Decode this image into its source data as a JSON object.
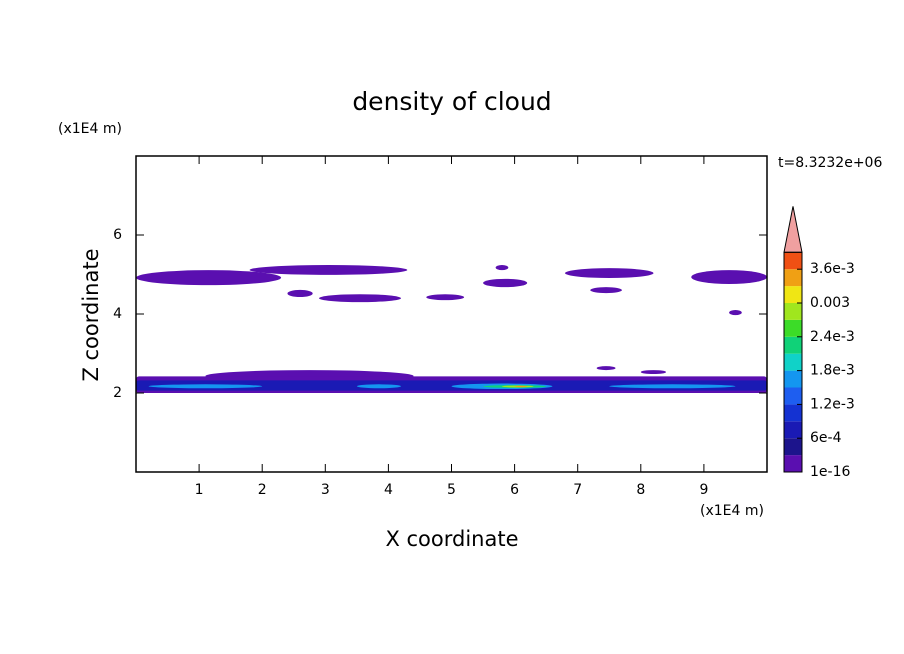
{
  "chart_data": {
    "type": "contour",
    "title": "density of cloud",
    "xlabel": "X coordinate",
    "ylabel": "Z coordinate",
    "x_unit": "(x1E4 m)",
    "y_unit": "(x1E4 m)",
    "time_label": "t=8.3232e+06",
    "xlim": [
      0,
      10
    ],
    "ylim": [
      0,
      8
    ],
    "xticks": [
      1,
      2,
      3,
      4,
      5,
      6,
      7,
      8,
      9
    ],
    "yticks": [
      2,
      4,
      6
    ],
    "colorbar": {
      "levels": [
        1e-16,
        0.0003,
        0.0006,
        0.0009,
        0.0012,
        0.0015,
        0.0018,
        0.0021,
        0.0024,
        0.0027,
        0.003,
        0.0033,
        0.0036,
        0.0039
      ],
      "colors": [
        "#5a0fb0",
        "#1c148c",
        "#1a1ab4",
        "#1432d2",
        "#1e5ef0",
        "#1496f0",
        "#10d2c8",
        "#10d278",
        "#3cdc28",
        "#a0e61e",
        "#f0e614",
        "#f0a014",
        "#f05014"
      ],
      "extend_color": "#f0a0a0",
      "ticks": [
        {
          "value": 1e-16,
          "label": "1e-16"
        },
        {
          "value": 0.0006,
          "label": "6e-4"
        },
        {
          "value": 0.0012,
          "label": "1.2e-3"
        },
        {
          "value": 0.0018,
          "label": "1.8e-3"
        },
        {
          "value": 0.0024,
          "label": "2.4e-3"
        },
        {
          "value": 0.003,
          "label": "0.003"
        },
        {
          "value": 0.0036,
          "label": "3.6e-3"
        }
      ]
    },
    "regions": [
      {
        "x": [
          0,
          2.3
        ],
        "z": [
          4.73,
          5.11
        ],
        "level": 1e-16
      },
      {
        "x": [
          1.8,
          4.3
        ],
        "z": [
          4.99,
          5.24
        ],
        "level": 1e-16
      },
      {
        "x": [
          2.4,
          2.8
        ],
        "z": [
          4.43,
          4.61
        ],
        "level": 1e-16
      },
      {
        "x": [
          2.9,
          4.2
        ],
        "z": [
          4.3,
          4.5
        ],
        "level": 1e-16
      },
      {
        "x": [
          4.6,
          5.2
        ],
        "z": [
          4.35,
          4.5
        ],
        "level": 1e-16
      },
      {
        "x": [
          5.5,
          6.2
        ],
        "z": [
          4.68,
          4.89
        ],
        "level": 1e-16
      },
      {
        "x": [
          5.7,
          5.9
        ],
        "z": [
          5.11,
          5.24
        ],
        "level": 1e-16
      },
      {
        "x": [
          6.8,
          8.2
        ],
        "z": [
          4.91,
          5.16
        ],
        "level": 1e-16
      },
      {
        "x": [
          7.2,
          7.7
        ],
        "z": [
          4.53,
          4.68
        ],
        "level": 1e-16
      },
      {
        "x": [
          8.8,
          10
        ],
        "z": [
          4.76,
          5.11
        ],
        "level": 1e-16
      },
      {
        "x": [
          9.4,
          9.6
        ],
        "z": [
          3.97,
          4.1
        ],
        "level": 1e-16
      },
      {
        "x": [
          1.1,
          4.4
        ],
        "z": [
          2.28,
          2.58
        ],
        "level": 1e-16
      },
      {
        "x": [
          7.3,
          7.6
        ],
        "z": [
          2.58,
          2.68
        ],
        "level": 1e-16
      },
      {
        "x": [
          8.0,
          8.4
        ],
        "z": [
          2.48,
          2.58
        ],
        "level": 1e-16
      },
      {
        "x": [
          0,
          10
        ],
        "z": [
          2.0,
          2.42
        ],
        "level": 1e-16
      },
      {
        "x": [
          0,
          10
        ],
        "z": [
          2.06,
          2.32
        ],
        "level": 0.0006
      },
      {
        "x": [
          0.2,
          2.0
        ],
        "z": [
          2.12,
          2.22
        ],
        "level": 0.0015
      },
      {
        "x": [
          3.5,
          4.2
        ],
        "z": [
          2.12,
          2.22
        ],
        "level": 0.0015
      },
      {
        "x": [
          5.0,
          6.6
        ],
        "z": [
          2.1,
          2.24
        ],
        "level": 0.0015
      },
      {
        "x": [
          7.5,
          9.5
        ],
        "z": [
          2.12,
          2.22
        ],
        "level": 0.0015
      },
      {
        "x": [
          5.5,
          6.5
        ],
        "z": [
          2.13,
          2.2
        ],
        "level": 0.0021
      },
      {
        "x": [
          5.8,
          6.3
        ],
        "z": [
          2.14,
          2.19
        ],
        "level": 0.0027
      },
      {
        "x": [
          6.0,
          6.2
        ],
        "z": [
          2.15,
          2.18
        ],
        "level": 0.0033
      }
    ]
  }
}
